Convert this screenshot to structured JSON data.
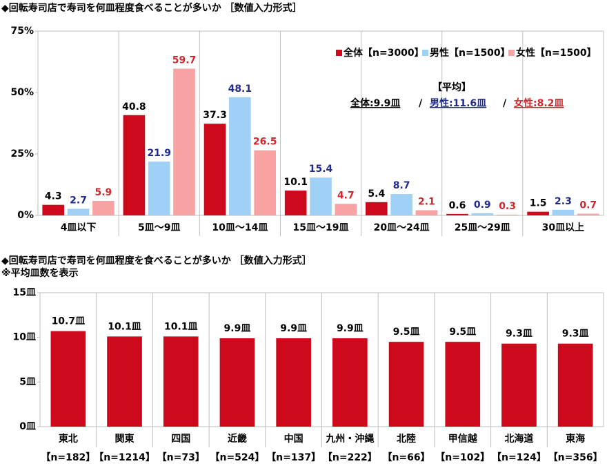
{
  "chart_data": [
    {
      "type": "bar",
      "title": "◆回転寿司店で寿司を何皿程度食べることが多いか ［数値入力形式］",
      "categories": [
        "4皿以下",
        "5皿～9皿",
        "10皿～14皿",
        "15皿～19皿",
        "20皿～24皿",
        "25皿～29皿",
        "30皿以上"
      ],
      "series": [
        {
          "name": "全体【n=3000】",
          "color": "#cc0a1c",
          "label_color": "#000000",
          "values": [
            4.3,
            40.8,
            37.3,
            10.1,
            5.4,
            0.6,
            1.5
          ]
        },
        {
          "name": "男性【n=1500】",
          "color": "#9fd0f6",
          "label_color": "#1f2a8c",
          "values": [
            2.7,
            21.9,
            48.1,
            15.4,
            8.7,
            0.9,
            2.3
          ]
        },
        {
          "name": "女性【n=1500】",
          "color": "#f7a3a3",
          "label_color": "#d0262e",
          "values": [
            5.9,
            59.7,
            26.5,
            4.7,
            2.1,
            0.3,
            0.7
          ]
        }
      ],
      "ylim": [
        0,
        75
      ],
      "yticks": [
        {
          "value": 0,
          "label": "0%"
        },
        {
          "value": 25,
          "label": "25%"
        },
        {
          "value": 50,
          "label": "50%"
        },
        {
          "value": 75,
          "label": "75%"
        }
      ],
      "grid": false,
      "legend": "top-right",
      "annotation": {
        "title": "【平均】",
        "separator": "/",
        "items": [
          {
            "text": "全体:9.9皿",
            "color": "#000000"
          },
          {
            "text": "男性:11.6皿",
            "color": "#1f2a8c"
          },
          {
            "text": "女性:8.2皿",
            "color": "#d0262e"
          }
        ]
      }
    },
    {
      "type": "bar",
      "title": "◆回転寿司店で寿司を何皿程度を食べることが多いか ［数値入力形式］",
      "subtitle": "※平均皿数を表示",
      "categories": [
        "東北",
        "関東",
        "四国",
        "近畿",
        "中国",
        "九州・沖縄",
        "北陸",
        "甲信越",
        "北海道",
        "東海"
      ],
      "category_notes": [
        "【n=182】",
        "【n=1214】",
        "【n=73】",
        "【n=524】",
        "【n=137】",
        "【n=222】",
        "【n=66】",
        "【n=102】",
        "【n=124】",
        "【n=356】"
      ],
      "values": [
        10.7,
        10.1,
        10.1,
        9.9,
        9.9,
        9.9,
        9.5,
        9.5,
        9.3,
        9.3
      ],
      "value_labels": [
        "10.7皿",
        "10.1皿",
        "10.1皿",
        "9.9皿",
        "9.9皿",
        "9.9皿",
        "9.5皿",
        "9.5皿",
        "9.3皿",
        "9.3皿"
      ],
      "color": "#cc0a1c",
      "ylim": [
        0,
        15
      ],
      "yticks": [
        {
          "value": 0,
          "label": "0皿"
        },
        {
          "value": 5,
          "label": "5皿"
        },
        {
          "value": 10,
          "label": "10皿"
        },
        {
          "value": 15,
          "label": "15皿"
        }
      ],
      "grid": false
    }
  ]
}
